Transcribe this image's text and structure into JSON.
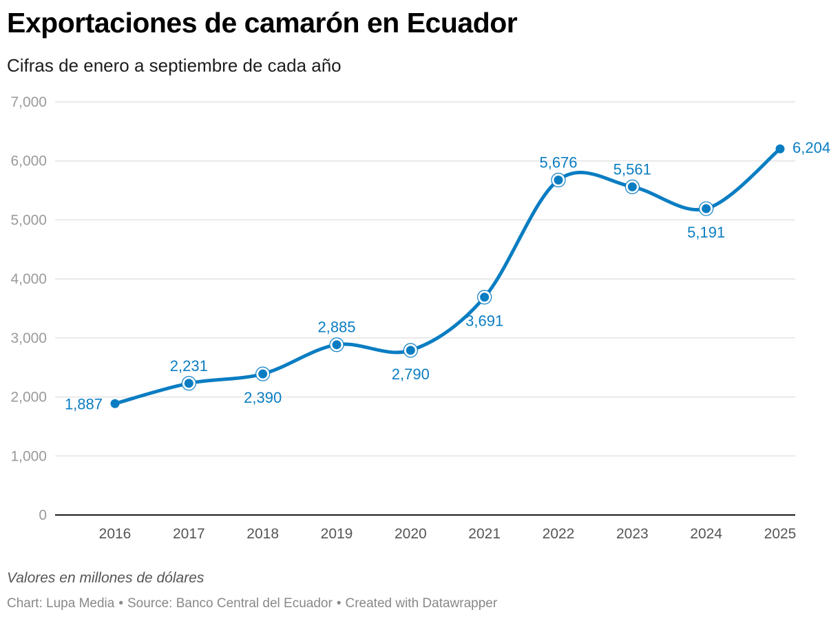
{
  "header": {
    "title": "Exportaciones de camarón en Ecuador",
    "subtitle": "Cifras de enero a septiembre de cada año"
  },
  "notes": {
    "units_note": "Valores en millones de dólares",
    "credit": "Chart: Lupa Media",
    "source": "Source: Banco Central del Ecuador",
    "created_with": "Created with Datawrapper",
    "separator": "•"
  },
  "colors": {
    "line": "#0a7dc2",
    "grid": "#e3e3e3",
    "baseline": "#1d1d1d"
  },
  "chart_data": {
    "type": "line",
    "title": "Exportaciones de camarón en Ecuador",
    "subtitle": "Cifras de enero a septiembre de cada año",
    "xlabel": "",
    "ylabel": "",
    "categories": [
      "2016",
      "2017",
      "2018",
      "2019",
      "2020",
      "2021",
      "2022",
      "2023",
      "2024",
      "2025"
    ],
    "values": [
      1887,
      2231,
      2390,
      2885,
      2790,
      3691,
      5676,
      5561,
      5191,
      6204
    ],
    "value_labels": [
      "1,887",
      "2,231",
      "2,390",
      "2,885",
      "2,790",
      "3,691",
      "5,676",
      "5,561",
      "5,191",
      "6,204"
    ],
    "label_positions": [
      "left",
      "above",
      "below",
      "above",
      "below",
      "below",
      "above",
      "above",
      "below",
      "right"
    ],
    "ylim": [
      0,
      7000
    ],
    "yticks": [
      0,
      1000,
      2000,
      3000,
      4000,
      5000,
      6000,
      7000
    ],
    "ytick_labels": [
      "0",
      "1,000",
      "2,000",
      "3,000",
      "4,000",
      "5,000",
      "6,000",
      "7,000"
    ],
    "grid": true,
    "curve": "smooth"
  }
}
